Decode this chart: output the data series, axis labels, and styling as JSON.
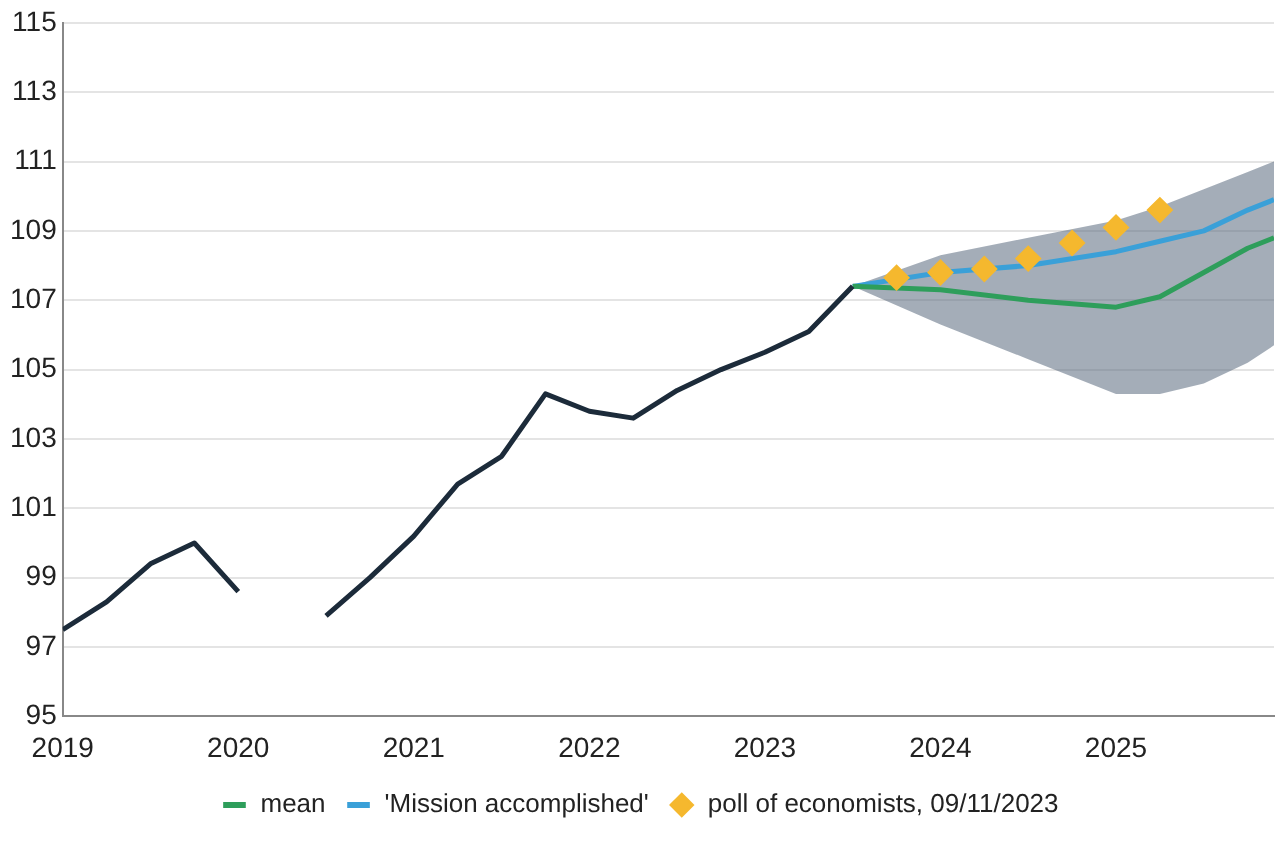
{
  "chart_data": {
    "type": "line",
    "xlim": [
      2019,
      2025.9
    ],
    "xticks": [
      2019,
      2020,
      2021,
      2022,
      2023,
      2024,
      2025
    ],
    "ylim": [
      95,
      115
    ],
    "yticks": [
      95,
      97,
      99,
      101,
      103,
      105,
      107,
      109,
      111,
      113,
      115
    ],
    "grid": "y",
    "legend": "bottom",
    "line_style": "solid",
    "series": [
      {
        "color": "#1c2b3a",
        "x": [
          2019,
          2019.25,
          2019.5,
          2019.75,
          2020,
          2020.25,
          2020.5,
          2020.75,
          2021,
          2021.25,
          2021.5,
          2021.75,
          2022,
          2022.25,
          2022.5,
          2022.75,
          2023,
          2023.25,
          2023.5
        ],
        "values": [
          97.5,
          98.3,
          99.4,
          100.0,
          98.6,
          null,
          97.9,
          99.0,
          100.2,
          101.7,
          102.5,
          104.3,
          103.8,
          103.6,
          104.4,
          105.0,
          105.5,
          106.1,
          107.4
        ]
      },
      {
        "name": "mean",
        "color": "#2e9e5b",
        "x": [
          2023.5,
          2024,
          2024.5,
          2025,
          2025.25,
          2025.5,
          2025.75,
          2025.9
        ],
        "values": [
          107.4,
          107.3,
          107.0,
          106.8,
          107.1,
          107.8,
          108.5,
          108.8
        ],
        "lower": [
          107.4,
          106.3,
          105.3,
          104.3,
          104.3,
          104.6,
          105.2,
          105.7
        ],
        "upper": [
          107.4,
          108.3,
          108.8,
          109.3,
          109.7,
          110.2,
          110.7,
          111.0
        ]
      },
      {
        "name": "'Mission accomplished'",
        "color": "#3aa0d8",
        "x": [
          2023.5,
          2024,
          2024.5,
          2025,
          2025.25,
          2025.5,
          2025.75,
          2025.9
        ],
        "values": [
          107.4,
          107.8,
          108.0,
          108.4,
          108.7,
          109.0,
          109.6,
          109.9
        ]
      },
      {
        "name": "poll of economists, 09/11/2023",
        "type": "scatter",
        "marker": "diamond",
        "color": "#f5b82e",
        "x": [
          2023.75,
          2024,
          2024.25,
          2024.5,
          2024.75,
          2025,
          2025.25
        ],
        "values": [
          107.65,
          107.8,
          107.9,
          108.2,
          108.65,
          109.1,
          109.6
        ]
      }
    ]
  }
}
